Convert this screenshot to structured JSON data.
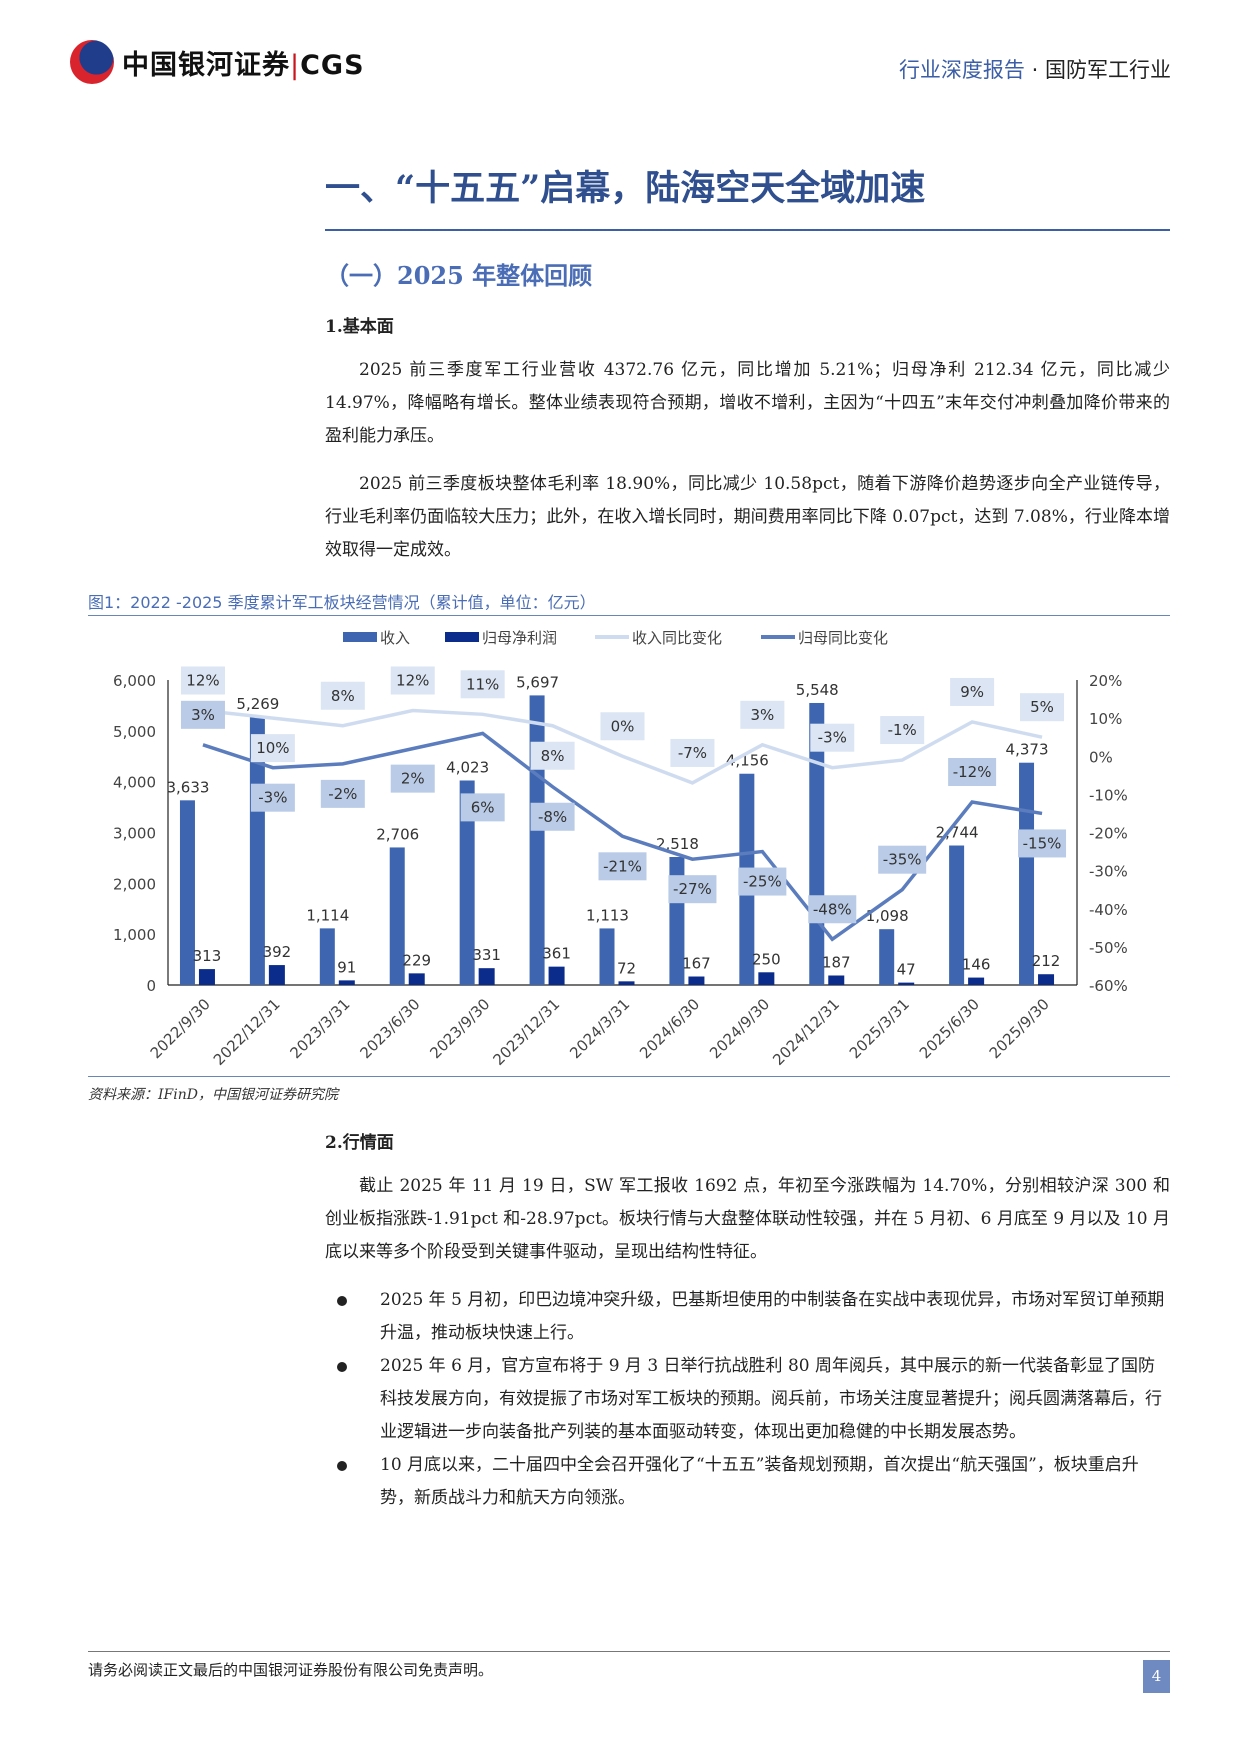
{
  "header": {
    "logo_text": "中国银河证券",
    "logo_abbr": "CGS",
    "report_type": "行业深度报告",
    "separator": "·",
    "industry": "国防军工行业"
  },
  "section": {
    "h1": "一、“十五五”启幕，陆海空天全域加速",
    "h2": "（一）2025 年整体回顾",
    "sub1": "1.基本面",
    "p1": "2025 前三季度军工行业营收 4372.76 亿元，同比增加 5.21%；归母净利 212.34 亿元，同比减少 14.97%，降幅略有增长。整体业绩表现符合预期，增收不增利，主因为“十四五”末年交付冲刺叠加降价带来的盈利能力承压。",
    "p2": "2025 前三季度板块整体毛利率 18.90%，同比减少 10.58pct，随着下游降价趋势逐步向全产业链传导，行业毛利率仍面临较大压力；此外，在收入增长同时，期间费用率同比下降 0.07pct，达到 7.08%，行业降本增效取得一定成效。",
    "fig_title": "图1：2022 -2025 季度累计军工板块经营情况（累计值，单位：亿元）",
    "source": "资料来源：IFinD，中国银河证券研究院",
    "sub2": "2.行情面",
    "p3": "截止 2025 年 11 月 19 日，SW 军工报收 1692 点，年初至今涨跌幅为 14.70%，分别相较沪深 300 和创业板指涨跌-1.91pct 和-28.97pct。板块行情与大盘整体联动性较强，并在 5 月初、6 月底至 9 月以及 10 月底以来等多个阶段受到关键事件驱动，呈现出结构性特征。",
    "bullets": [
      "2025 年 5 月初，印巴边境冲突升级，巴基斯坦使用的中制装备在实战中表现优异，市场对军贸订单预期升温，推动板块快速上行。",
      "2025 年 6 月，官方宣布将于 9 月 3 日举行抗战胜利 80 周年阅兵，其中展示的新一代装备彰显了国防科技发展方向，有效提振了市场对军工板块的预期。阅兵前，市场关注度显著提升；阅兵圆满落幕后，行业逻辑进一步向装备批产列装的基本面驱动转变，体现出更加稳健的中长期发展态势。",
      "10 月底以来，二十届四中全会召开强化了“十五五”装备规划预期，首次提出“航天强国”，板块重启升势，新质战斗力和航天方向领涨。"
    ]
  },
  "footer": {
    "disclaimer": "请务必阅读正文最后的中国银河证券股份有限公司免责声明。",
    "page": "4"
  },
  "chart_data": {
    "type": "bar",
    "categories": [
      "2022/9/30",
      "2022/12/31",
      "2023/3/31",
      "2023/6/30",
      "2023/9/30",
      "2023/12/31",
      "2024/3/31",
      "2024/6/30",
      "2024/9/30",
      "2024/12/31",
      "2025/3/31",
      "2025/6/30",
      "2025/9/30"
    ],
    "series": [
      {
        "name": "收入",
        "kind": "bar",
        "axis": "left",
        "color": "#3d65b0",
        "values": [
          3633,
          5269,
          1114,
          2706,
          4023,
          5697,
          1113,
          2518,
          4156,
          5548,
          1098,
          2744,
          4373
        ],
        "labels": [
          "3,633",
          "5,269",
          "1,114",
          "2,706",
          "4,023",
          "5,697",
          "1,113",
          "2,518",
          "4,156",
          "5,548",
          "1,098",
          "2,744",
          "4,373"
        ]
      },
      {
        "name": "归母净利润",
        "kind": "bar",
        "axis": "left",
        "color": "#0b2c8a",
        "values": [
          313,
          392,
          91,
          229,
          331,
          361,
          72,
          167,
          250,
          187,
          47,
          146,
          212
        ],
        "labels": [
          "313",
          "392",
          "91",
          "229",
          "331",
          "361",
          "72",
          "167",
          "250",
          "187",
          "47",
          "146",
          "212"
        ]
      },
      {
        "name": "收入同比变化",
        "kind": "line",
        "axis": "right",
        "color": "#cfdcf0",
        "values": [
          12,
          10,
          8,
          12,
          11,
          8,
          0,
          -7,
          3,
          -3,
          -1,
          9,
          5
        ],
        "labels": [
          "12%",
          "10%",
          "8%",
          "12%",
          "11%",
          "8%",
          "0%",
          "-7%",
          "3%",
          "-3%",
          "-1%",
          "9%",
          "5%"
        ]
      },
      {
        "name": "归母同比变化",
        "kind": "line",
        "axis": "right",
        "color": "#5b7cbd",
        "values": [
          3,
          -3,
          -2,
          2,
          6,
          -8,
          -21,
          -27,
          -25,
          -48,
          -35,
          -12,
          -15
        ],
        "labels": [
          "3%",
          "-3%",
          "-2%",
          "2%",
          "6%",
          "-8%",
          "-21%",
          "-27%",
          "-25%",
          "-48%",
          "-35%",
          "-12%",
          "-15%"
        ]
      }
    ],
    "left_axis": {
      "range": [
        0,
        6000
      ],
      "ticks": [
        "0",
        "1,000",
        "2,000",
        "3,000",
        "4,000",
        "5,000",
        "6,000"
      ]
    },
    "right_axis": {
      "range": [
        -60,
        20
      ],
      "ticks": [
        "-60%",
        "-50%",
        "-40%",
        "-30%",
        "-20%",
        "-10%",
        "0%",
        "10%",
        "20%"
      ]
    },
    "legend_position": "top",
    "grid": false
  }
}
